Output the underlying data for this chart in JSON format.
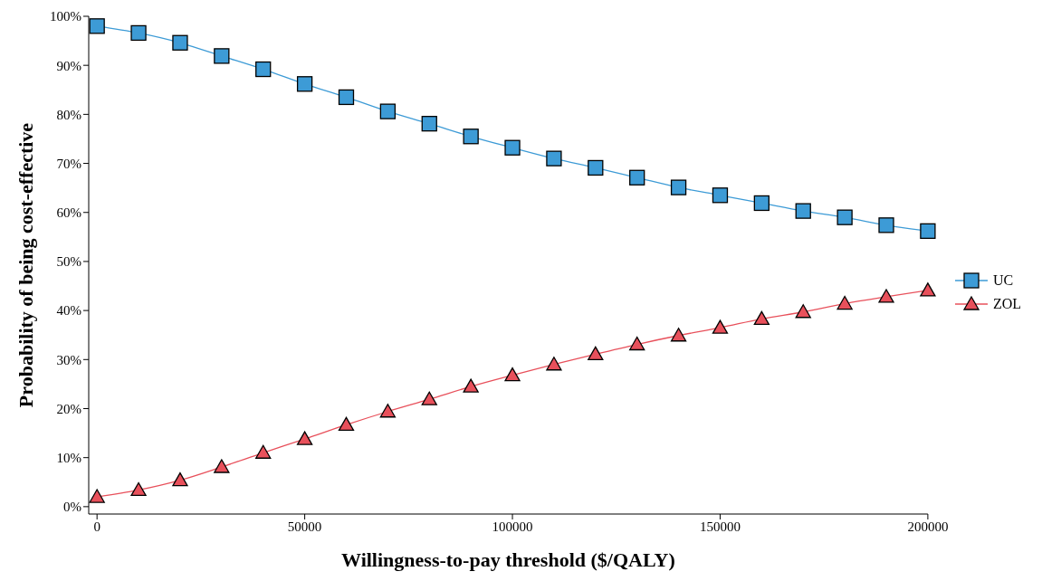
{
  "chart_data": {
    "type": "line",
    "xlabel": "Willingness-to-pay threshold ($/QALY)",
    "ylabel": "Probability of being cost-effective",
    "x": [
      0,
      10000,
      20000,
      30000,
      40000,
      50000,
      60000,
      70000,
      80000,
      90000,
      100000,
      110000,
      120000,
      130000,
      140000,
      150000,
      160000,
      170000,
      180000,
      190000,
      200000
    ],
    "series": [
      {
        "name": "UC",
        "color": "#3d9bd6",
        "marker": "square",
        "values": [
          98.0,
          96.6,
          94.6,
          91.9,
          89.2,
          86.2,
          83.5,
          80.6,
          78.1,
          75.5,
          73.2,
          71.0,
          69.1,
          67.1,
          65.1,
          63.5,
          61.9,
          60.3,
          59.0,
          57.4,
          56.2
        ]
      },
      {
        "name": "ZOL",
        "color": "#e8505b",
        "marker": "triangle",
        "values": [
          2.0,
          3.4,
          5.4,
          8.1,
          11.0,
          13.8,
          16.7,
          19.4,
          21.9,
          24.5,
          26.8,
          29.0,
          31.1,
          33.1,
          34.9,
          36.5,
          38.3,
          39.7,
          41.4,
          42.8,
          44.1
        ]
      }
    ],
    "xlim": [
      -2000,
      200000
    ],
    "xticks": [
      0,
      50000,
      100000,
      150000,
      200000
    ],
    "ylim": [
      -1.5,
      100
    ],
    "yticks": [
      {
        "value": 0,
        "label": "0%"
      },
      {
        "value": 10,
        "label": "10%"
      },
      {
        "value": 20,
        "label": "20%"
      },
      {
        "value": 30,
        "label": "30%"
      },
      {
        "value": 40,
        "label": "40%"
      },
      {
        "value": 50,
        "label": "50%"
      },
      {
        "value": 60,
        "label": "60%"
      },
      {
        "value": 70,
        "label": "70%"
      },
      {
        "value": 80,
        "label": "80%"
      },
      {
        "value": 90,
        "label": "90%"
      },
      {
        "value": 100,
        "label": "100%"
      }
    ],
    "grid": false,
    "legend": "right",
    "line_style": "solid"
  }
}
